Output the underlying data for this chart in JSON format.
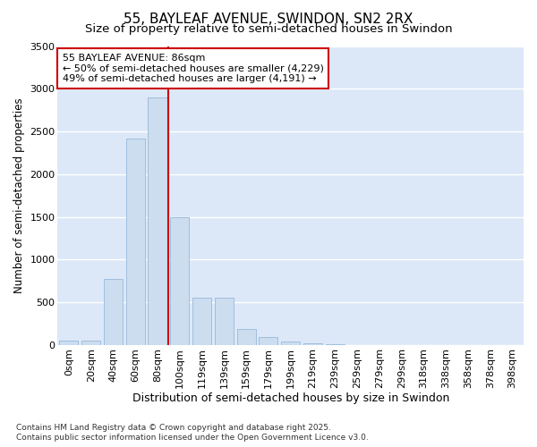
{
  "title": "55, BAYLEAF AVENUE, SWINDON, SN2 2RX",
  "subtitle": "Size of property relative to semi-detached houses in Swindon",
  "xlabel": "Distribution of semi-detached houses by size in Swindon",
  "ylabel": "Number of semi-detached properties",
  "annotation_title": "55 BAYLEAF AVENUE: 86sqm",
  "annotation_line1": "← 50% of semi-detached houses are smaller (4,229)",
  "annotation_line2": "49% of semi-detached houses are larger (4,191) →",
  "footer_line1": "Contains HM Land Registry data © Crown copyright and database right 2025.",
  "footer_line2": "Contains public sector information licensed under the Open Government Licence v3.0.",
  "bar_labels": [
    "0sqm",
    "20sqm",
    "40sqm",
    "60sqm",
    "80sqm",
    "100sqm",
    "119sqm",
    "139sqm",
    "159sqm",
    "179sqm",
    "199sqm",
    "219sqm",
    "239sqm",
    "259sqm",
    "279sqm",
    "299sqm",
    "318sqm",
    "338sqm",
    "358sqm",
    "378sqm",
    "398sqm"
  ],
  "bar_values": [
    50,
    50,
    775,
    2420,
    2900,
    1500,
    550,
    550,
    190,
    95,
    40,
    20,
    8,
    5,
    3,
    2,
    1,
    1,
    0,
    0,
    0
  ],
  "vline_bin_index": 4,
  "bar_color": "#ccddf0",
  "bar_edge_color": "#a0bedd",
  "vline_color": "#cc0000",
  "annotation_box_bg": "#ffffff",
  "annotation_box_edge": "#cc0000",
  "ylim": [
    0,
    3500
  ],
  "yticks": [
    0,
    500,
    1000,
    1500,
    2000,
    2500,
    3000,
    3500
  ],
  "fig_bg_color": "#ffffff",
  "plot_bg_color": "#dce8f8",
  "grid_color": "#ffffff",
  "title_fontsize": 11,
  "subtitle_fontsize": 9.5,
  "tick_fontsize": 8,
  "ylabel_fontsize": 8.5,
  "xlabel_fontsize": 9,
  "annotation_fontsize": 8,
  "footer_fontsize": 6.5
}
